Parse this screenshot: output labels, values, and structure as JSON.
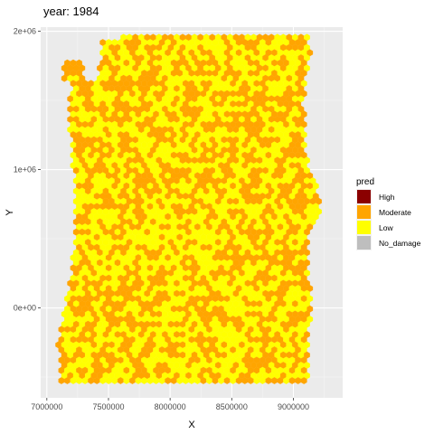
{
  "chart_data": {
    "type": "hexbin-map",
    "title": "year: 1984",
    "xlabel": "X",
    "ylabel": "Y",
    "xlim": [
      6950000,
      9400000
    ],
    "ylim": [
      -650000,
      2030000
    ],
    "x_ticks": [
      {
        "value": 7000000,
        "label": "7000000"
      },
      {
        "value": 7500000,
        "label": "7500000"
      },
      {
        "value": 8000000,
        "label": "8000000"
      },
      {
        "value": 8500000,
        "label": "8500000"
      },
      {
        "value": 9000000,
        "label": "9000000"
      }
    ],
    "y_ticks": [
      {
        "value": 0,
        "label": "0e+00"
      },
      {
        "value": 1000000,
        "label": "1e+06"
      },
      {
        "value": 2000000,
        "label": "2e+06"
      }
    ],
    "grid": true,
    "legend": {
      "title": "pred",
      "placement": "right",
      "entries": [
        {
          "name": "High",
          "color": "#8B0000"
        },
        {
          "name": "Moderate",
          "color": "#FFA500"
        },
        {
          "name": "Low",
          "color": "#FFFF00"
        },
        {
          "name": "No_damage",
          "color": "#BEBEBE"
        }
      ]
    },
    "region_outline": [
      [
        7180000,
        1480000
      ],
      [
        7210000,
        1620000
      ],
      [
        7140000,
        1640000
      ],
      [
        7140000,
        1790000
      ],
      [
        7300000,
        1780000
      ],
      [
        7310000,
        1640000
      ],
      [
        7420000,
        1640000
      ],
      [
        7450000,
        1930000
      ],
      [
        7610000,
        1930000
      ],
      [
        7620000,
        1990000
      ],
      [
        9120000,
        1990000
      ],
      [
        9140000,
        1850000
      ],
      [
        9080000,
        1500000
      ],
      [
        9120000,
        1000000
      ],
      [
        9230000,
        800000
      ],
      [
        9220000,
        700000
      ],
      [
        9120000,
        500000
      ],
      [
        9140000,
        0
      ],
      [
        9120000,
        -300000
      ],
      [
        9120000,
        -550000
      ],
      [
        7110000,
        -550000
      ],
      [
        7090000,
        -250000
      ],
      [
        7140000,
        0
      ],
      [
        7210000,
        300000
      ],
      [
        7230000,
        900000
      ],
      [
        7180000,
        1300000
      ]
    ],
    "hex_spacing": 48000,
    "moderate_share": 0.47,
    "dominant_class": "Low",
    "secondary_class": "Moderate"
  }
}
